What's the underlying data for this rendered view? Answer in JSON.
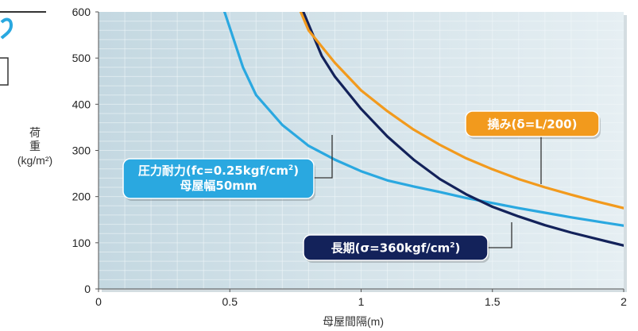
{
  "chart_data": {
    "type": "line",
    "xlabel": "母屋間隔(m)",
    "ylabel_lines": [
      "荷",
      "重",
      "(kg/m²)"
    ],
    "xlim": [
      0,
      2
    ],
    "ylim": [
      0,
      600
    ],
    "x_ticks": [
      {
        "value": 0,
        "label": "0"
      },
      {
        "value": 0.5,
        "label": "0.5"
      },
      {
        "value": 1,
        "label": "1"
      },
      {
        "value": 1.5,
        "label": "1.5"
      },
      {
        "value": 2,
        "label": "2"
      }
    ],
    "y_ticks": [
      {
        "value": 0,
        "label": "0"
      },
      {
        "value": 100,
        "label": "100"
      },
      {
        "value": 200,
        "label": "200"
      },
      {
        "value": 300,
        "label": "300"
      },
      {
        "value": 400,
        "label": "400"
      },
      {
        "value": 500,
        "label": "500"
      },
      {
        "value": 600,
        "label": "600"
      }
    ],
    "grid": true,
    "background_color": "#d3e3ea",
    "grid_color": "#f2f8fa",
    "series": [
      {
        "id": "compression",
        "color": "#2aa8e0",
        "label_lines": [
          [
            {
              "t": "圧力耐力(fc=0.25kgf/cm"
            },
            {
              "t": "2",
              "sup": true
            },
            {
              "t": ")"
            }
          ],
          [
            {
              "t": "母屋幅50mm"
            }
          ]
        ],
        "x": [
          0.48,
          0.55,
          0.6,
          0.7,
          0.8,
          0.9,
          1.0,
          1.1,
          1.2,
          1.3,
          1.4,
          1.5,
          1.6,
          1.7,
          1.8,
          1.9,
          2.0
        ],
        "y": [
          600,
          480,
          420,
          355,
          310,
          280,
          255,
          235,
          222,
          210,
          197,
          186,
          175,
          165,
          155,
          146,
          137
        ]
      },
      {
        "id": "long_term",
        "color": "#13225a",
        "label_lines": [
          [
            {
              "t": "長期(σ=360kgf/cm"
            },
            {
              "t": "2",
              "sup": true
            },
            {
              "t": ")"
            }
          ]
        ],
        "x": [
          0.78,
          0.85,
          0.9,
          1.0,
          1.1,
          1.2,
          1.3,
          1.4,
          1.5,
          1.6,
          1.7,
          1.8,
          1.9,
          2.0
        ],
        "y": [
          600,
          505,
          460,
          390,
          330,
          280,
          238,
          205,
          178,
          157,
          138,
          122,
          108,
          94
        ]
      },
      {
        "id": "deflection",
        "color": "#f29a1d",
        "label_lines": [
          [
            {
              "t": "撓み(δ=L/200)"
            }
          ]
        ],
        "x": [
          0.77,
          0.8,
          0.9,
          1.0,
          1.1,
          1.2,
          1.3,
          1.4,
          1.5,
          1.6,
          1.7,
          1.8,
          1.9,
          2.0
        ],
        "y": [
          600,
          560,
          490,
          430,
          385,
          345,
          312,
          283,
          259,
          238,
          220,
          204,
          189,
          175
        ]
      }
    ]
  },
  "side_icon_colors": {
    "blue": "#29a8e0",
    "dark": "#333333"
  }
}
